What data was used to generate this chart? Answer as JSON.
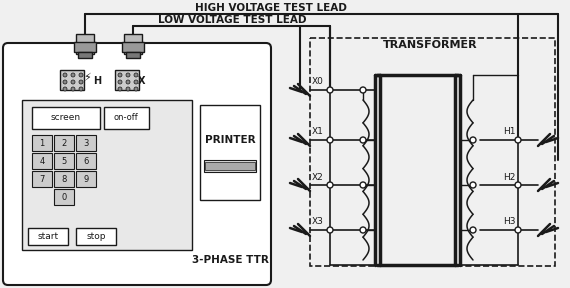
{
  "bg_color": "#f0f0f0",
  "line_color": "#1a1a1a",
  "title_high": "HIGH VOLTAGE TEST LEAD",
  "title_low": "LOW VOLTAGE TEST LEAD",
  "transformer_label": "TRANSFORMER",
  "device_label": "3-PHASE TTR",
  "printer_label": "PRINTER",
  "screen_label": "screen",
  "onoff_label": "on-off",
  "start_label": "start",
  "stop_label": "stop",
  "H_label": "H",
  "X_label": "X",
  "x_terminals": [
    "X0",
    "X1",
    "X2",
    "X3"
  ],
  "h_terminals": [
    "H1",
    "H2",
    "H3"
  ],
  "keypad_rows": [
    [
      "1",
      "2",
      "3"
    ],
    [
      "4",
      "5",
      "6"
    ],
    [
      "7",
      "8",
      "9"
    ],
    [
      "0"
    ]
  ]
}
